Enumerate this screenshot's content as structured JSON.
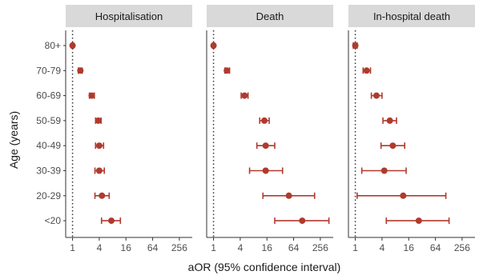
{
  "chart_data": {
    "type": "scatter",
    "subtype": "forest-plot",
    "xlabel": "aOR (95% confidence interval)",
    "ylabel": "Age (years)",
    "x_scale": "log2",
    "xlim": [
      0.7,
      500
    ],
    "x_ticks": [
      1,
      4,
      16,
      64,
      256
    ],
    "x_tick_labels": [
      "1",
      "4",
      "16",
      "64",
      "256"
    ],
    "reference_line": 1,
    "categories": [
      "80+",
      "70-79",
      "60-69",
      "50-59",
      "40-49",
      "30-39",
      "20-29",
      "<20"
    ],
    "color": "#b03a2e",
    "panels": [
      {
        "title": "Hospitalisation",
        "points": [
          {
            "category": "80+",
            "est": 1.0,
            "lo": 0.95,
            "hi": 1.05
          },
          {
            "category": "70-79",
            "est": 1.5,
            "lo": 1.35,
            "hi": 1.65
          },
          {
            "category": "60-69",
            "est": 2.7,
            "lo": 2.4,
            "hi": 3.1
          },
          {
            "category": "50-59",
            "est": 3.8,
            "lo": 3.3,
            "hi": 4.4
          },
          {
            "category": "40-49",
            "est": 4.0,
            "lo": 3.3,
            "hi": 5.0
          },
          {
            "category": "30-39",
            "est": 4.0,
            "lo": 3.2,
            "hi": 5.2
          },
          {
            "category": "20-29",
            "est": 4.6,
            "lo": 3.2,
            "hi": 6.7
          },
          {
            "category": "<20",
            "est": 7.5,
            "lo": 4.5,
            "hi": 12.0
          }
        ]
      },
      {
        "title": "Death",
        "points": [
          {
            "category": "80+",
            "est": 1.0,
            "lo": 0.95,
            "hi": 1.05
          },
          {
            "category": "70-79",
            "est": 2.0,
            "lo": 1.8,
            "hi": 2.3
          },
          {
            "category": "60-69",
            "est": 5.0,
            "lo": 4.2,
            "hi": 6.0
          },
          {
            "category": "50-59",
            "est": 14.0,
            "lo": 11.0,
            "hi": 18.0
          },
          {
            "category": "40-49",
            "est": 15.0,
            "lo": 9.5,
            "hi": 24.0
          },
          {
            "category": "30-39",
            "est": 15.0,
            "lo": 6.5,
            "hi": 36.0
          },
          {
            "category": "20-29",
            "est": 50.0,
            "lo": 13.0,
            "hi": 190.0
          },
          {
            "category": "<20",
            "est": 100.0,
            "lo": 24.0,
            "hi": 400.0
          }
        ]
      },
      {
        "title": "In-hospital death",
        "points": [
          {
            "category": "80+",
            "est": 1.0,
            "lo": 0.9,
            "hi": 1.1
          },
          {
            "category": "70-79",
            "est": 1.8,
            "lo": 1.5,
            "hi": 2.2
          },
          {
            "category": "60-69",
            "est": 3.0,
            "lo": 2.3,
            "hi": 4.0
          },
          {
            "category": "50-59",
            "est": 6.0,
            "lo": 4.2,
            "hi": 8.5
          },
          {
            "category": "40-49",
            "est": 7.0,
            "lo": 3.8,
            "hi": 13.0
          },
          {
            "category": "30-39",
            "est": 4.5,
            "lo": 1.4,
            "hi": 14.0
          },
          {
            "category": "20-29",
            "est": 12.0,
            "lo": 1.1,
            "hi": 110.0
          },
          {
            "category": "<20",
            "est": 27.0,
            "lo": 5.0,
            "hi": 130.0
          }
        ]
      }
    ]
  }
}
